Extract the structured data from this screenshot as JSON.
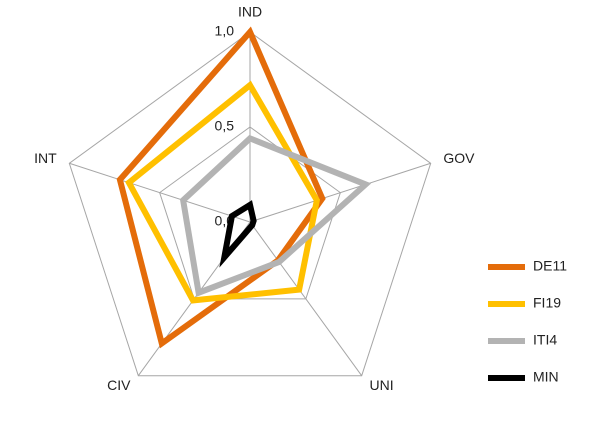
{
  "chart_data": {
    "type": "radar",
    "categories": [
      "IND",
      "GOV",
      "UNI",
      "CIV",
      "INT"
    ],
    "rlim": [
      0,
      1
    ],
    "rticks": [
      {
        "value": 0,
        "label": "0,0"
      },
      {
        "value": 0.5,
        "label": "0,5"
      },
      {
        "value": 1,
        "label": "1,0"
      }
    ],
    "grid": true,
    "legend": "right",
    "series": [
      {
        "name": "DE11",
        "color": "#e46c0a",
        "values": [
          1.0,
          0.4,
          0.25,
          0.79,
          0.72
        ]
      },
      {
        "name": "FI19",
        "color": "#ffc000",
        "values": [
          0.72,
          0.37,
          0.44,
          0.51,
          0.67
        ]
      },
      {
        "name": "ITI4",
        "color": "#b3b3b3",
        "values": [
          0.44,
          0.64,
          0.26,
          0.46,
          0.37
        ]
      },
      {
        "name": "MIN",
        "color": "#000000",
        "values": [
          0.09,
          0.02,
          0.02,
          0.23,
          0.1
        ]
      }
    ]
  }
}
